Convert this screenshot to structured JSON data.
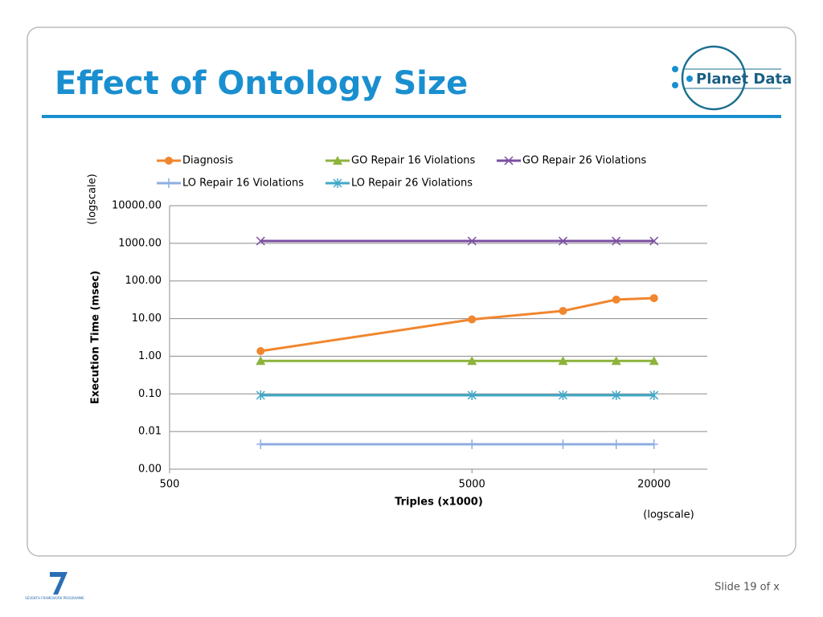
{
  "slide": {
    "title": "Effect of Ontology Size",
    "logo": "Planet Data",
    "footer_logo": "SEVENTH FRAMEWORK PROGRAMME",
    "slide_number": "Slide 19 of x"
  },
  "chart_data": {
    "type": "line",
    "x_label": "Triples (x1000)",
    "x_note": "(logscale)",
    "y_label": "Execution Time (msec)",
    "y_note": "(logscale)",
    "x": [
      1000,
      5000,
      10000,
      15000,
      20000
    ],
    "xlim": [
      500,
      30000
    ],
    "xticks": [
      500,
      5000,
      20000
    ],
    "xlog": true,
    "ylim": [
      0.001,
      10000
    ],
    "yticks": [
      {
        "value": 0.001,
        "label": "0.00"
      },
      {
        "value": 0.01,
        "label": "0.01"
      },
      {
        "value": 0.1,
        "label": "0.10"
      },
      {
        "value": 1,
        "label": "1.00"
      },
      {
        "value": 10,
        "label": "10.00"
      },
      {
        "value": 100,
        "label": "100.00"
      },
      {
        "value": 1000,
        "label": "1000.00"
      },
      {
        "value": 10000,
        "label": "10000.00"
      }
    ],
    "ylog": true,
    "grid": true,
    "legend": "top",
    "series": [
      {
        "name": "Diagnosis",
        "color": "#f0862e",
        "marker": "circle",
        "values": [
          1.37,
          9.5,
          16,
          32,
          35
        ]
      },
      {
        "name": "GO Repair 16 Violations",
        "color": "#8db33c",
        "marker": "triangle",
        "values": [
          0.75,
          0.75,
          0.75,
          0.75,
          0.75
        ]
      },
      {
        "name": "GO Repair 26 Violations",
        "color": "#7a4ea0",
        "marker": "x",
        "values": [
          1150,
          1150,
          1150,
          1150,
          1150
        ]
      },
      {
        "name": "LO Repair 16 Violations",
        "color": "#8faee0",
        "marker": "plus",
        "values": [
          0.0046,
          0.0046,
          0.0046,
          0.0046,
          0.0046
        ]
      },
      {
        "name": "LO Repair 26 Violations",
        "color": "#42a8c8",
        "marker": "asterisk",
        "values": [
          0.092,
          0.092,
          0.092,
          0.092,
          0.092
        ]
      }
    ]
  }
}
